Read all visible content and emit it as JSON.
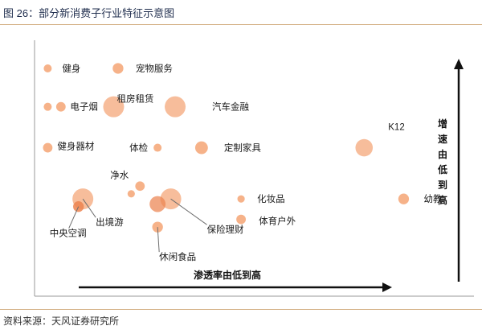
{
  "figure": {
    "title": "图 26：部分新消费子行业特征示意图",
    "source": "资料来源：天风证券研究所"
  },
  "colors": {
    "bubble": "#f4a474",
    "bubble_inner": "#ec8450",
    "rule": "#d6b48a",
    "axis": "#9a9a9a",
    "arrow": "#111111",
    "leader": "#6e6e6e"
  },
  "chart_data": {
    "type": "scatter",
    "title": "",
    "xlabel": "渗透率由低到高",
    "ylabel": "增速由低到高",
    "xlim": [
      0,
      100
    ],
    "ylim": [
      0,
      100
    ],
    "grid": false,
    "legend": "none",
    "points": [
      {
        "label": "健身",
        "x": 3,
        "y": 89,
        "size": 1
      },
      {
        "label": "宠物服务",
        "x": 19,
        "y": 89,
        "size": 2
      },
      {
        "label": "电子烟",
        "x": 3,
        "y": 74,
        "size": 1
      },
      {
        "label": "",
        "x": 6,
        "y": 74,
        "size": 1.5
      },
      {
        "label": "租房租赁",
        "x": 18,
        "y": 74,
        "size": 9
      },
      {
        "label": "汽车金融",
        "x": 32,
        "y": 74,
        "size": 9
      },
      {
        "label": "健身器材",
        "x": 3,
        "y": 58,
        "size": 1.5
      },
      {
        "label": "体检",
        "x": 28,
        "y": 58,
        "size": 1
      },
      {
        "label": "定制家具",
        "x": 38,
        "y": 58,
        "size": 3
      },
      {
        "label": "K12",
        "x": 75,
        "y": 58,
        "size": 6
      },
      {
        "label": "净水",
        "x": 24,
        "y": 43,
        "size": 1.5
      },
      {
        "label": "",
        "x": 22,
        "y": 40,
        "size": 0.8
      },
      {
        "label": "出境游",
        "x": 11,
        "y": 38,
        "size": 9
      },
      {
        "label": "中央空调",
        "x": 10,
        "y": 35,
        "size": 2
      },
      {
        "label": "保险理财",
        "x": 31,
        "y": 38,
        "size": 9
      },
      {
        "label": "",
        "x": 28,
        "y": 36,
        "size": 5
      },
      {
        "label": "化妆品",
        "x": 47,
        "y": 38,
        "size": 0.8
      },
      {
        "label": "体育户外",
        "x": 47,
        "y": 30,
        "size": 1.5
      },
      {
        "label": "休闲食品",
        "x": 28,
        "y": 27,
        "size": 2
      },
      {
        "label": "幼教",
        "x": 84,
        "y": 38,
        "size": 2
      }
    ]
  }
}
